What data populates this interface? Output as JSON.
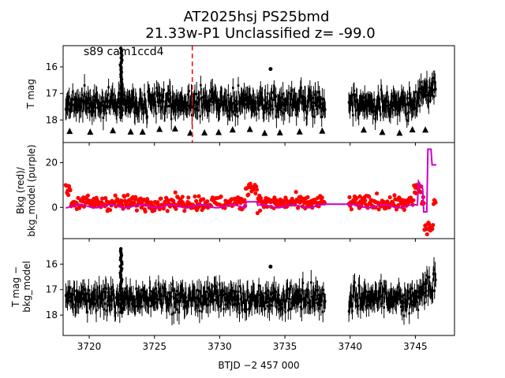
{
  "title_line1": "AT2025hsj  PS25bmd",
  "title_line2": "21.33w-P1 Unclassified z= -99.0",
  "annotation": "s89 cam1ccd4",
  "xlabel": "BTJD −2 457 000",
  "colors": {
    "data": "#000000",
    "bkg": "#ff0000",
    "model": "#cc00cc",
    "marker": "#ff0000"
  },
  "chart_data": [
    {
      "type": "scatter",
      "panel": "top",
      "ylabel": "T mag",
      "y_inverted": true,
      "xlim": [
        3718.0,
        3748.0
      ],
      "ylim": [
        15.2,
        18.85
      ],
      "x_ticks": [
        3720,
        3725,
        3730,
        3735,
        3740,
        3745
      ],
      "y_ticks": [
        "16",
        "17",
        "18"
      ],
      "y_tick_values": [
        16,
        17,
        18
      ],
      "series": [
        {
          "segments": [
            [
              3718.2,
              3738.1
            ],
            [
              3739.9,
              3746.6
            ]
          ],
          "base": 17.35,
          "spread": 0.55,
          "trend_end": 16.75,
          "trend_start": 3744.5
        }
      ],
      "flare": {
        "x": 3722.45,
        "min": 15.3,
        "max": 17.9
      },
      "outlier": {
        "x": 3733.9,
        "y": 16.08
      },
      "upper_limits_y": 18.4,
      "vline_x": 3727.9
    },
    {
      "type": "scatter",
      "panel": "middle",
      "ylabel_line1": "Bkg (red)/",
      "ylabel_line2": "bkg_model (purple)",
      "xlim": [
        3718.0,
        3748.0
      ],
      "ylim": [
        -14,
        29
      ],
      "x_ticks": [
        3720,
        3725,
        3730,
        3735,
        3740,
        3745
      ],
      "y_ticks": [
        "0",
        "20"
      ],
      "y_tick_values": [
        0,
        20
      ],
      "bkg_level": 2,
      "model_level": 0.5
    },
    {
      "type": "scatter",
      "panel": "bottom",
      "ylabel_line1": "T mag −",
      "ylabel_line2": "bkg_model",
      "y_inverted": true,
      "xlim": [
        3718.0,
        3748.0
      ],
      "ylim": [
        15.0,
        18.8
      ],
      "x_ticks": [
        3720,
        3725,
        3730,
        3735,
        3740,
        3745
      ],
      "x_tick_labels": [
        "3720",
        "3725",
        "3730",
        "3735",
        "3740",
        "3745"
      ],
      "y_ticks": [
        "16",
        "17",
        "18"
      ],
      "y_tick_values": [
        16,
        17,
        18
      ],
      "flare": {
        "x": 3722.45,
        "min": 15.4,
        "max": 17.9
      },
      "outlier": {
        "x": 3733.9,
        "y": 16.1
      }
    }
  ]
}
